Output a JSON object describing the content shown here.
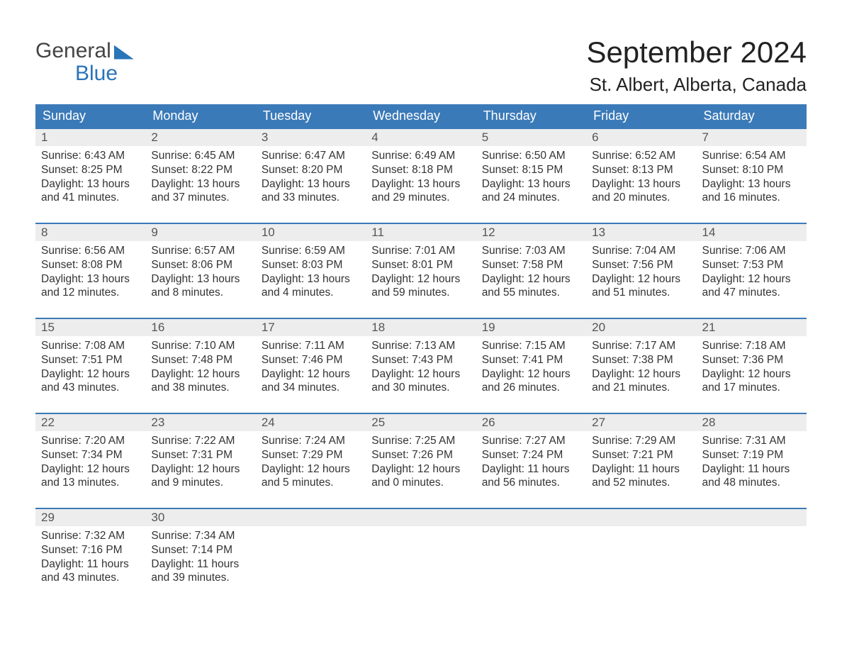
{
  "logo": {
    "line1": "General",
    "line2": "Blue"
  },
  "title": "September 2024",
  "location": "St. Albert, Alberta, Canada",
  "colors": {
    "header_bg": "#3b7ab8",
    "header_text": "#ffffff",
    "daynum_bg": "#ededed",
    "daynum_text": "#555555",
    "body_text": "#333333",
    "accent": "#2a74b8",
    "page_bg": "#ffffff"
  },
  "typography": {
    "title_fontsize": 42,
    "location_fontsize": 26,
    "header_fontsize": 18,
    "body_fontsize": 15.5,
    "font_family": "Arial"
  },
  "layout": {
    "columns": 7,
    "rows": 5,
    "week_border_color": "#3b7ab8",
    "week_border_width": 2
  },
  "weekdays": [
    "Sunday",
    "Monday",
    "Tuesday",
    "Wednesday",
    "Thursday",
    "Friday",
    "Saturday"
  ],
  "weeks": [
    [
      {
        "day": "1",
        "sunrise": "Sunrise: 6:43 AM",
        "sunset": "Sunset: 8:25 PM",
        "daylight1": "Daylight: 13 hours",
        "daylight2": "and 41 minutes."
      },
      {
        "day": "2",
        "sunrise": "Sunrise: 6:45 AM",
        "sunset": "Sunset: 8:22 PM",
        "daylight1": "Daylight: 13 hours",
        "daylight2": "and 37 minutes."
      },
      {
        "day": "3",
        "sunrise": "Sunrise: 6:47 AM",
        "sunset": "Sunset: 8:20 PM",
        "daylight1": "Daylight: 13 hours",
        "daylight2": "and 33 minutes."
      },
      {
        "day": "4",
        "sunrise": "Sunrise: 6:49 AM",
        "sunset": "Sunset: 8:18 PM",
        "daylight1": "Daylight: 13 hours",
        "daylight2": "and 29 minutes."
      },
      {
        "day": "5",
        "sunrise": "Sunrise: 6:50 AM",
        "sunset": "Sunset: 8:15 PM",
        "daylight1": "Daylight: 13 hours",
        "daylight2": "and 24 minutes."
      },
      {
        "day": "6",
        "sunrise": "Sunrise: 6:52 AM",
        "sunset": "Sunset: 8:13 PM",
        "daylight1": "Daylight: 13 hours",
        "daylight2": "and 20 minutes."
      },
      {
        "day": "7",
        "sunrise": "Sunrise: 6:54 AM",
        "sunset": "Sunset: 8:10 PM",
        "daylight1": "Daylight: 13 hours",
        "daylight2": "and 16 minutes."
      }
    ],
    [
      {
        "day": "8",
        "sunrise": "Sunrise: 6:56 AM",
        "sunset": "Sunset: 8:08 PM",
        "daylight1": "Daylight: 13 hours",
        "daylight2": "and 12 minutes."
      },
      {
        "day": "9",
        "sunrise": "Sunrise: 6:57 AM",
        "sunset": "Sunset: 8:06 PM",
        "daylight1": "Daylight: 13 hours",
        "daylight2": "and 8 minutes."
      },
      {
        "day": "10",
        "sunrise": "Sunrise: 6:59 AM",
        "sunset": "Sunset: 8:03 PM",
        "daylight1": "Daylight: 13 hours",
        "daylight2": "and 4 minutes."
      },
      {
        "day": "11",
        "sunrise": "Sunrise: 7:01 AM",
        "sunset": "Sunset: 8:01 PM",
        "daylight1": "Daylight: 12 hours",
        "daylight2": "and 59 minutes."
      },
      {
        "day": "12",
        "sunrise": "Sunrise: 7:03 AM",
        "sunset": "Sunset: 7:58 PM",
        "daylight1": "Daylight: 12 hours",
        "daylight2": "and 55 minutes."
      },
      {
        "day": "13",
        "sunrise": "Sunrise: 7:04 AM",
        "sunset": "Sunset: 7:56 PM",
        "daylight1": "Daylight: 12 hours",
        "daylight2": "and 51 minutes."
      },
      {
        "day": "14",
        "sunrise": "Sunrise: 7:06 AM",
        "sunset": "Sunset: 7:53 PM",
        "daylight1": "Daylight: 12 hours",
        "daylight2": "and 47 minutes."
      }
    ],
    [
      {
        "day": "15",
        "sunrise": "Sunrise: 7:08 AM",
        "sunset": "Sunset: 7:51 PM",
        "daylight1": "Daylight: 12 hours",
        "daylight2": "and 43 minutes."
      },
      {
        "day": "16",
        "sunrise": "Sunrise: 7:10 AM",
        "sunset": "Sunset: 7:48 PM",
        "daylight1": "Daylight: 12 hours",
        "daylight2": "and 38 minutes."
      },
      {
        "day": "17",
        "sunrise": "Sunrise: 7:11 AM",
        "sunset": "Sunset: 7:46 PM",
        "daylight1": "Daylight: 12 hours",
        "daylight2": "and 34 minutes."
      },
      {
        "day": "18",
        "sunrise": "Sunrise: 7:13 AM",
        "sunset": "Sunset: 7:43 PM",
        "daylight1": "Daylight: 12 hours",
        "daylight2": "and 30 minutes."
      },
      {
        "day": "19",
        "sunrise": "Sunrise: 7:15 AM",
        "sunset": "Sunset: 7:41 PM",
        "daylight1": "Daylight: 12 hours",
        "daylight2": "and 26 minutes."
      },
      {
        "day": "20",
        "sunrise": "Sunrise: 7:17 AM",
        "sunset": "Sunset: 7:38 PM",
        "daylight1": "Daylight: 12 hours",
        "daylight2": "and 21 minutes."
      },
      {
        "day": "21",
        "sunrise": "Sunrise: 7:18 AM",
        "sunset": "Sunset: 7:36 PM",
        "daylight1": "Daylight: 12 hours",
        "daylight2": "and 17 minutes."
      }
    ],
    [
      {
        "day": "22",
        "sunrise": "Sunrise: 7:20 AM",
        "sunset": "Sunset: 7:34 PM",
        "daylight1": "Daylight: 12 hours",
        "daylight2": "and 13 minutes."
      },
      {
        "day": "23",
        "sunrise": "Sunrise: 7:22 AM",
        "sunset": "Sunset: 7:31 PM",
        "daylight1": "Daylight: 12 hours",
        "daylight2": "and 9 minutes."
      },
      {
        "day": "24",
        "sunrise": "Sunrise: 7:24 AM",
        "sunset": "Sunset: 7:29 PM",
        "daylight1": "Daylight: 12 hours",
        "daylight2": "and 5 minutes."
      },
      {
        "day": "25",
        "sunrise": "Sunrise: 7:25 AM",
        "sunset": "Sunset: 7:26 PM",
        "daylight1": "Daylight: 12 hours",
        "daylight2": "and 0 minutes."
      },
      {
        "day": "26",
        "sunrise": "Sunrise: 7:27 AM",
        "sunset": "Sunset: 7:24 PM",
        "daylight1": "Daylight: 11 hours",
        "daylight2": "and 56 minutes."
      },
      {
        "day": "27",
        "sunrise": "Sunrise: 7:29 AM",
        "sunset": "Sunset: 7:21 PM",
        "daylight1": "Daylight: 11 hours",
        "daylight2": "and 52 minutes."
      },
      {
        "day": "28",
        "sunrise": "Sunrise: 7:31 AM",
        "sunset": "Sunset: 7:19 PM",
        "daylight1": "Daylight: 11 hours",
        "daylight2": "and 48 minutes."
      }
    ],
    [
      {
        "day": "29",
        "sunrise": "Sunrise: 7:32 AM",
        "sunset": "Sunset: 7:16 PM",
        "daylight1": "Daylight: 11 hours",
        "daylight2": "and 43 minutes."
      },
      {
        "day": "30",
        "sunrise": "Sunrise: 7:34 AM",
        "sunset": "Sunset: 7:14 PM",
        "daylight1": "Daylight: 11 hours",
        "daylight2": "and 39 minutes."
      },
      {
        "empty": true
      },
      {
        "empty": true
      },
      {
        "empty": true
      },
      {
        "empty": true
      },
      {
        "empty": true
      }
    ]
  ]
}
